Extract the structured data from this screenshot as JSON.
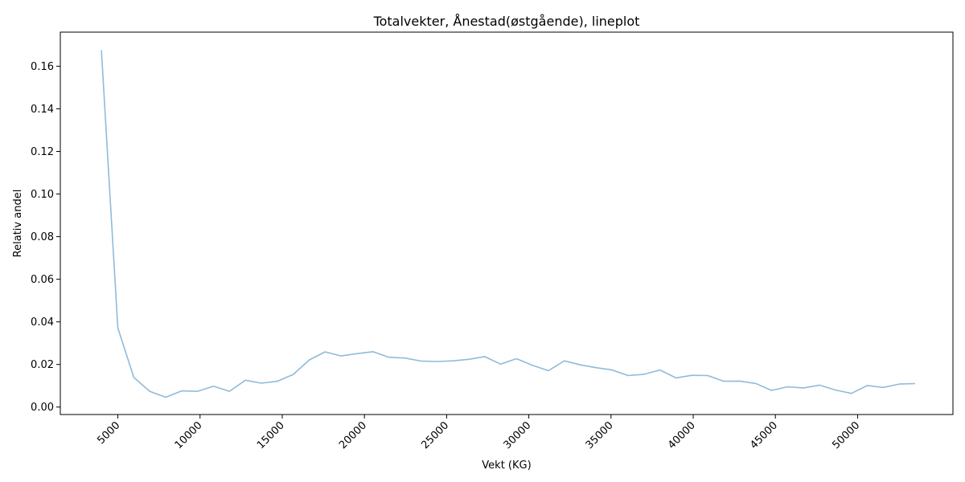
{
  "chart_data": {
    "type": "line",
    "title": "Totalvekter, Ånestad(østgående), lineplot",
    "xlabel": "Vekt (KG)",
    "ylabel": "Relativ andel",
    "xlim": [
      1500,
      55800
    ],
    "ylim": [
      -0.0035,
      0.176
    ],
    "xticks": [
      5000,
      10000,
      15000,
      20000,
      25000,
      30000,
      35000,
      40000,
      45000,
      50000
    ],
    "xtick_labels": [
      "5000",
      "10000",
      "15000",
      "20000",
      "25000",
      "30000",
      "35000",
      "40000",
      "45000",
      "50000"
    ],
    "xtick_rotation": 45,
    "yticks": [
      0.0,
      0.02,
      0.04,
      0.06,
      0.08,
      0.1,
      0.12,
      0.14,
      0.16
    ],
    "ytick_labels": [
      "0.00",
      "0.02",
      "0.04",
      "0.06",
      "0.08",
      "0.10",
      "0.12",
      "0.14",
      "0.16"
    ],
    "grid": false,
    "series": [
      {
        "color": "#8fbbd9",
        "x": [
          4000,
          5000,
          5970,
          6940,
          7910,
          8880,
          9850,
          10820,
          11790,
          12760,
          13730,
          14700,
          15670,
          16640,
          17610,
          18580,
          19550,
          20520,
          21490,
          22460,
          23430,
          24400,
          25370,
          26340,
          27310,
          28280,
          29250,
          30220,
          31190,
          32160,
          33130,
          34100,
          35070,
          36040,
          37010,
          37980,
          38950,
          39920,
          40890,
          41860,
          42830,
          43800,
          44770,
          45740,
          46710,
          47680,
          48650,
          49620,
          50590,
          51560,
          52530,
          53500
        ],
        "y": [
          0.1675,
          0.0372,
          0.0139,
          0.0074,
          0.0046,
          0.0076,
          0.0074,
          0.0098,
          0.0074,
          0.0126,
          0.0112,
          0.0121,
          0.0153,
          0.0221,
          0.0259,
          0.024,
          0.0251,
          0.026,
          0.0234,
          0.023,
          0.0216,
          0.0214,
          0.0217,
          0.0224,
          0.0237,
          0.0202,
          0.0227,
          0.0196,
          0.0171,
          0.0217,
          0.0198,
          0.0185,
          0.0174,
          0.0148,
          0.0154,
          0.0174,
          0.0137,
          0.0149,
          0.0148,
          0.0121,
          0.0122,
          0.0111,
          0.0078,
          0.0095,
          0.009,
          0.0103,
          0.008,
          0.0064,
          0.0101,
          0.0092,
          0.0108,
          0.011
        ]
      }
    ]
  }
}
